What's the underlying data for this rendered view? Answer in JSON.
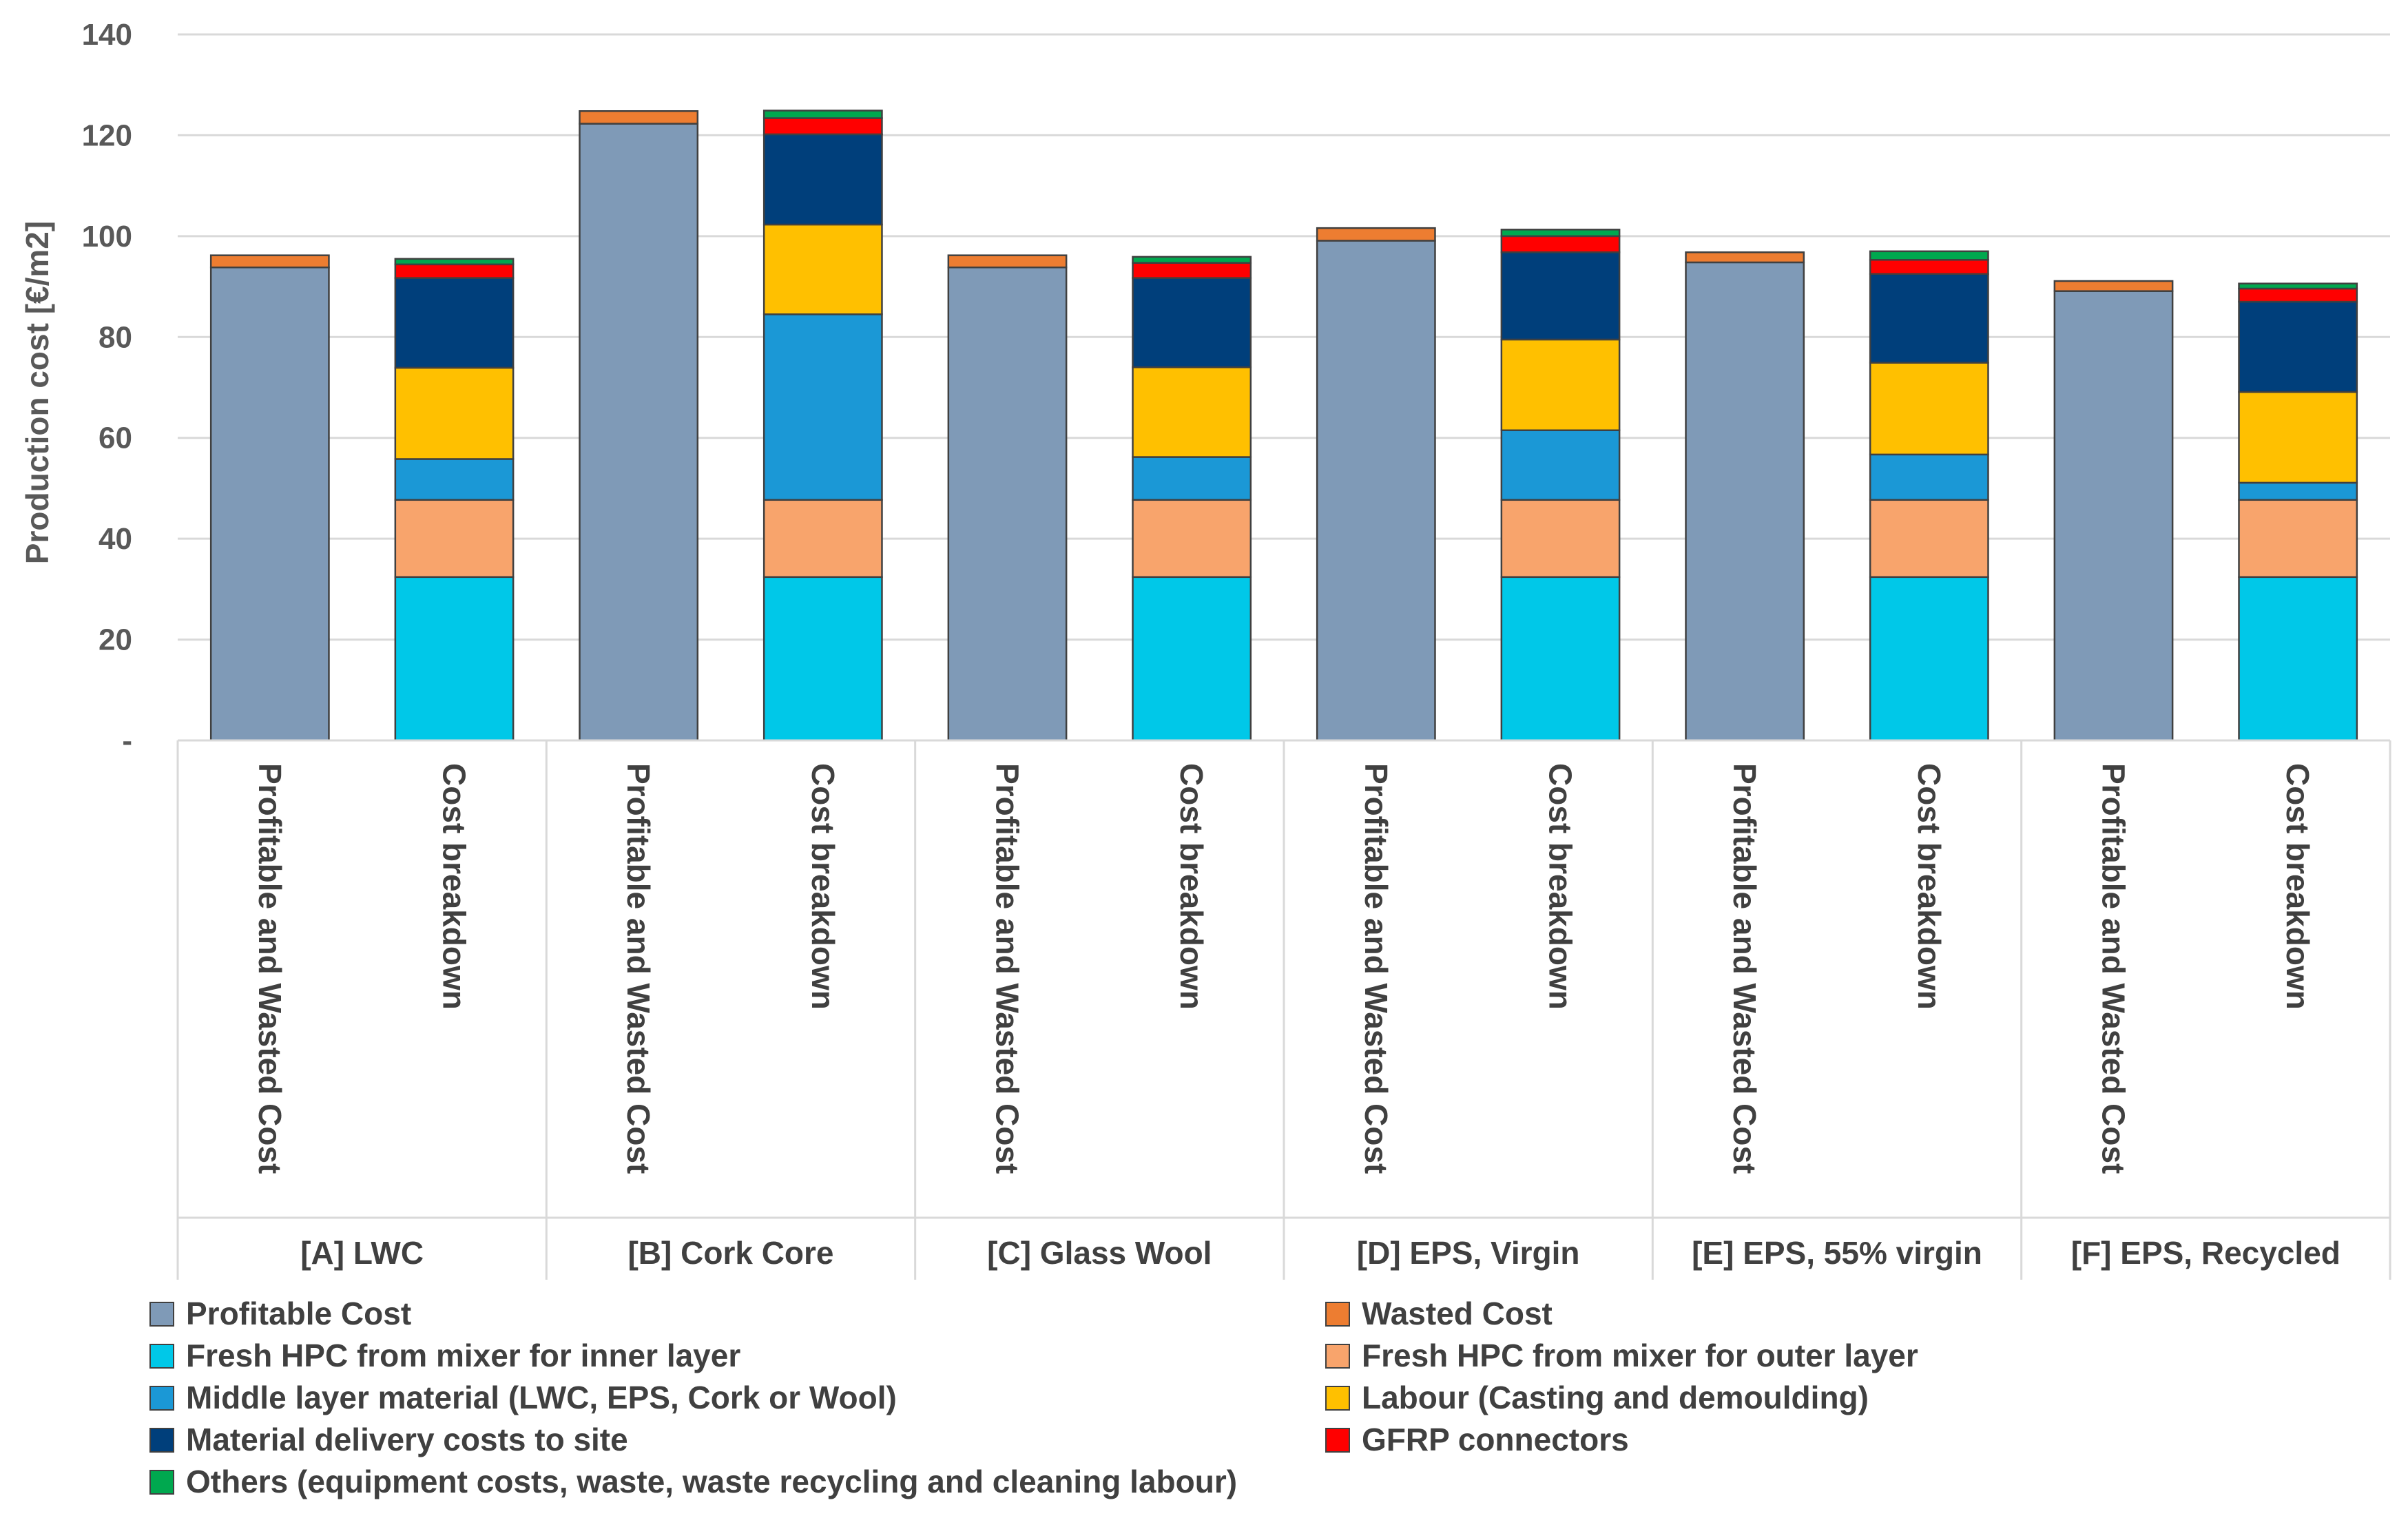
{
  "chart_data": {
    "type": "bar",
    "stacked": true,
    "title": "",
    "xlabel": "",
    "ylabel": "Production cost [€/m2]",
    "ylim": [
      0,
      140
    ],
    "yticks": [
      0,
      20,
      40,
      60,
      80,
      100,
      120,
      140
    ],
    "ytick_labels": [
      "-",
      "20",
      "40",
      "60",
      "80",
      "100",
      "120",
      "140"
    ],
    "grid": true,
    "legend_position": "bottom",
    "groups": [
      "[A] LWC",
      "[B] Cork Core",
      "[C] Glass Wool",
      "[D] EPS, Virgin",
      "[E] EPS, 55% virgin",
      "[F] EPS, Recycled"
    ],
    "categories": [
      "Profitable and Wasted Cost",
      "Cost breakdown",
      "Profitable and Wasted Cost",
      "Cost breakdown",
      "Profitable and Wasted Cost",
      "Cost breakdown",
      "Profitable and Wasted Cost",
      "Cost breakdown",
      "Profitable and Wasted Cost",
      "Cost breakdown",
      "Profitable and Wasted Cost",
      "Cost breakdown"
    ],
    "series": [
      {
        "name": "Profitable Cost",
        "color": "#7F9AB7",
        "values": [
          93.8,
          0,
          122.3,
          0,
          93.8,
          0,
          99.1,
          0,
          94.8,
          0,
          89.1,
          0
        ]
      },
      {
        "name": "Wasted Cost",
        "color": "#ED7D31",
        "values": [
          2.4,
          0,
          2.5,
          0,
          2.4,
          0,
          2.5,
          0,
          2.0,
          0,
          2.0,
          0
        ]
      },
      {
        "name": "Fresh HPC from mixer for inner layer",
        "color": "#00C8E8",
        "values": [
          0,
          32.4,
          0,
          32.4,
          0,
          32.4,
          0,
          32.4,
          0,
          32.4,
          0,
          32.4
        ]
      },
      {
        "name": "Fresh HPC from mixer for outer layer",
        "color": "#F8A46C",
        "values": [
          0,
          15.3,
          0,
          15.3,
          0,
          15.3,
          0,
          15.3,
          0,
          15.3,
          0,
          15.3
        ]
      },
      {
        "name": "Middle layer material (LWC, EPS, Cork or Wool)",
        "color": "#1B98D6",
        "values": [
          0,
          8.1,
          0,
          36.8,
          0,
          8.5,
          0,
          13.8,
          0,
          9.0,
          0,
          3.4
        ]
      },
      {
        "name": "Labour (Casting and demoulding)",
        "color": "#FFC000",
        "values": [
          0,
          18.1,
          0,
          17.8,
          0,
          17.8,
          0,
          18.0,
          0,
          18.2,
          0,
          18.0
        ]
      },
      {
        "name": "Material delivery costs to site",
        "color": "#003F7B",
        "values": [
          0,
          17.8,
          0,
          17.9,
          0,
          17.7,
          0,
          17.3,
          0,
          17.6,
          0,
          17.9
        ]
      },
      {
        "name": "GFRP connectors",
        "color": "#FF0000",
        "values": [
          0,
          2.7,
          0,
          3.2,
          0,
          3.0,
          0,
          3.2,
          0,
          2.8,
          0,
          2.6
        ]
      },
      {
        "name": "Others (equipment costs, waste, waste recycling and cleaning labour)",
        "color": "#00A84F",
        "values": [
          0,
          1.1,
          0,
          1.5,
          0,
          1.2,
          0,
          1.3,
          0,
          1.7,
          0,
          1.0
        ]
      }
    ]
  }
}
